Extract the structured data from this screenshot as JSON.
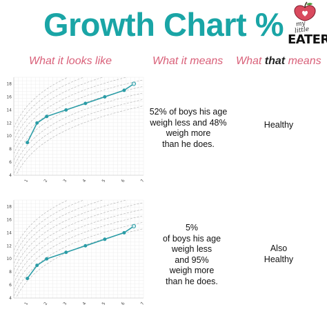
{
  "header": {
    "title": "Growth Chart %",
    "title_color": "#1aa5a6",
    "logo": {
      "word_1": "my",
      "word_2": "little",
      "word_3": "EATER",
      "icon": "apple-heart-icon",
      "accent": "#d94a5e"
    }
  },
  "columns": {
    "col1": "What it looks like",
    "col2": "What it means",
    "col3_prefix": "What ",
    "col3_bold": "that",
    "col3_suffix": " means",
    "header_color": "#d96079"
  },
  "rows": [
    {
      "description": "52% of boys his age\nweigh less and 48%\nweigh more\nthan he does.",
      "verdict": "Healthy"
    },
    {
      "description": "5%\nof boys his age\nweigh less\nand 95%\nweigh more\nthan he does.",
      "verdict": "Also\nHealthy"
    }
  ],
  "chart_data": [
    {
      "type": "line",
      "x": [
        1,
        1.5,
        2,
        3,
        4,
        5,
        6,
        6.5
      ],
      "series": [
        {
          "values": [
            9,
            12,
            13,
            14,
            15,
            16,
            17,
            18
          ]
        }
      ],
      "xticks": [
        1,
        2,
        3,
        4,
        5,
        6,
        7
      ],
      "yticks": [
        4,
        6,
        8,
        10,
        12,
        14,
        16,
        18
      ],
      "xlim": [
        0.3,
        7
      ],
      "ylim": [
        4,
        19
      ],
      "grid": true,
      "line_color": "#2a9ca6",
      "reference_curves": "dashed grey percentile curves"
    },
    {
      "type": "line",
      "x": [
        1,
        1.5,
        2,
        3,
        4,
        5,
        6,
        6.5
      ],
      "series": [
        {
          "values": [
            7,
            9,
            10,
            11,
            12,
            13,
            14,
            15
          ]
        }
      ],
      "xticks": [
        1,
        2,
        3,
        4,
        5,
        6,
        7
      ],
      "yticks": [
        4,
        6,
        8,
        10,
        12,
        14,
        16,
        18
      ],
      "xlim": [
        0.3,
        7
      ],
      "ylim": [
        4,
        19
      ],
      "grid": true,
      "line_color": "#2a9ca6",
      "reference_curves": "dashed grey percentile curves"
    }
  ]
}
